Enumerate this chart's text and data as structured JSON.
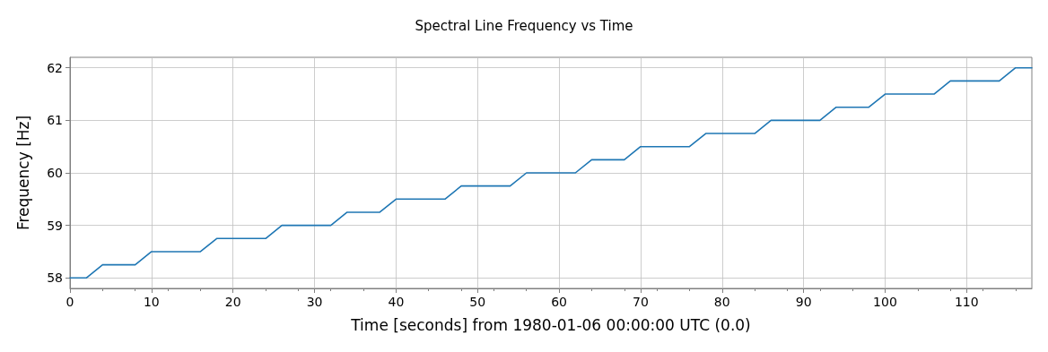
{
  "chart_data": {
    "type": "line",
    "title": "Spectral Line Frequency vs Time",
    "xlabel": "Time [seconds] from 1980-01-06 00:00:00 UTC (0.0)",
    "ylabel": "Frequency [Hz]",
    "x": [
      0,
      2,
      4,
      8,
      10,
      16,
      18,
      24,
      26,
      32,
      34,
      38,
      40,
      46,
      48,
      54,
      56,
      62,
      64,
      68,
      70,
      76,
      78,
      84,
      86,
      92,
      94,
      98,
      100,
      106,
      108,
      114,
      116,
      118
    ],
    "series": [
      {
        "color": "#1f77b4",
        "values": [
          58,
          58,
          58.25,
          58.25,
          58.5,
          58.5,
          58.75,
          58.75,
          59,
          59,
          59.25,
          59.25,
          59.5,
          59.5,
          59.75,
          59.75,
          60,
          60,
          60.25,
          60.25,
          60.5,
          60.5,
          60.75,
          60.75,
          61,
          61,
          61.25,
          61.25,
          61.5,
          61.5,
          61.75,
          61.75,
          62,
          62
        ]
      }
    ],
    "xlim": [
      0,
      118
    ],
    "xticks": [
      0,
      10,
      20,
      30,
      40,
      50,
      60,
      70,
      80,
      90,
      100,
      110
    ],
    "ylim": [
      57.8,
      62.2
    ],
    "yticks": [
      58,
      59,
      60,
      61,
      62
    ],
    "grid": true,
    "marker": "none",
    "line_style": "solid"
  }
}
